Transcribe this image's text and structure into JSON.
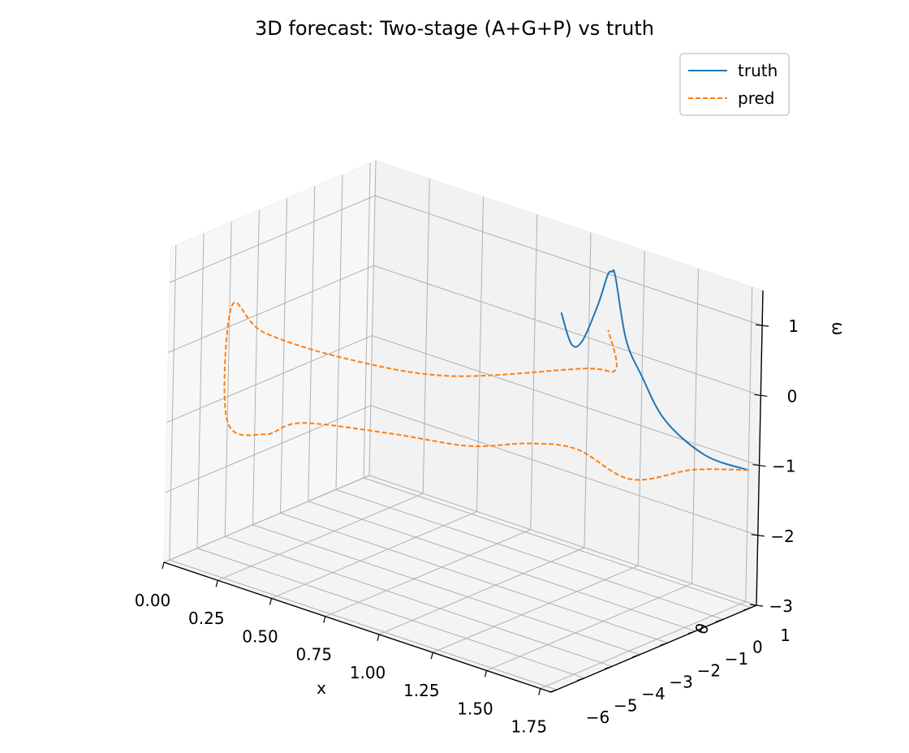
{
  "chart_data": {
    "type": "line",
    "projection": "3d",
    "title": "3D forecast: Two-stage (A+G+P) vs truth",
    "xlabel": "x",
    "ylabel": "θ",
    "zlabel": "ω",
    "xlim": [
      0,
      1.8
    ],
    "ylim": [
      -6.2,
      1.2
    ],
    "zlim": [
      -3,
      1.5
    ],
    "x_ticks": [
      "0.00",
      "0.25",
      "0.50",
      "0.75",
      "1.00",
      "1.25",
      "1.50",
      "1.75"
    ],
    "y_ticks": [
      "−6",
      "−5",
      "−4",
      "−3",
      "−2",
      "−1",
      "0",
      "1"
    ],
    "z_ticks": [
      "−3",
      "−2",
      "−1",
      "0",
      "1"
    ],
    "grid": true,
    "legend": {
      "placement": "top-right",
      "entries": [
        "truth",
        "pred"
      ]
    },
    "colors": {
      "truth": "#1f77b4",
      "pred": "#ff7f0e",
      "pane": "#f2f2f2",
      "grid": "#b0b0b0"
    },
    "series": [
      {
        "name": "truth",
        "style": "solid",
        "x": [
          1.8,
          1.62,
          1.45,
          1.35,
          1.3,
          1.27,
          1.26,
          1.24,
          1.2,
          1.13,
          1.08,
          1.03
        ],
        "y": [
          0.8,
          0.65,
          0.5,
          0.4,
          0.2,
          0.0,
          -0.05,
          -0.05,
          -0.05,
          -0.05,
          -0.05,
          -0.05
        ],
        "z": [
          -1.0,
          -0.95,
          -0.6,
          -0.05,
          0.45,
          1.35,
          1.42,
          1.35,
          0.9,
          0.3,
          0.2,
          0.6
        ]
      },
      {
        "name": "pred",
        "style": "dashed",
        "x": [
          1.8,
          1.57,
          1.36,
          1.12,
          0.96,
          0.8,
          0.56,
          0.31,
          0.2,
          0.1,
          0.2,
          0.4,
          0.67,
          0.96,
          1.28,
          1.35,
          1.28
        ],
        "y": [
          0.8,
          0.6,
          0.0,
          -0.1,
          -0.6,
          -1.5,
          -2.5,
          -3.75,
          -4.2,
          -4.8,
          -5.5,
          -5.9,
          -5.0,
          -3.5,
          -1.2,
          -0.55,
          -0.3
        ],
        "z": [
          -1.0,
          -1.2,
          -1.45,
          -1.25,
          -1.25,
          -1.3,
          -1.2,
          -1.1,
          -1.3,
          -1.1,
          0.75,
          0.65,
          0.4,
          0.2,
          0.25,
          0.2,
          0.65
        ]
      }
    ]
  }
}
